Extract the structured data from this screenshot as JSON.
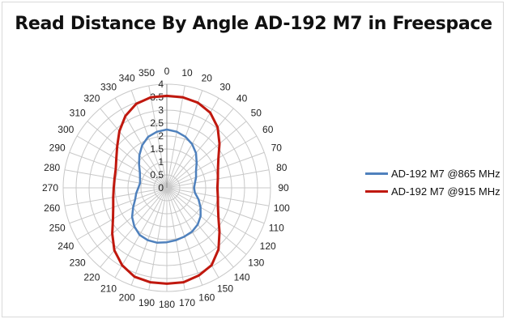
{
  "chart_data": {
    "type": "polar-line",
    "title": "Read Distance By Angle AD-192 M7 in Freespace",
    "angle_labels": [
      "0",
      "10",
      "20",
      "30",
      "40",
      "50",
      "60",
      "70",
      "80",
      "90",
      "100",
      "110",
      "120",
      "130",
      "140",
      "150",
      "160",
      "170",
      "180",
      "190",
      "200",
      "210",
      "220",
      "230",
      "240",
      "250",
      "260",
      "270",
      "280",
      "290",
      "300",
      "310",
      "320",
      "330",
      "340",
      "350"
    ],
    "radial_labels": [
      "0",
      "0.5",
      "1",
      "1.5",
      "2",
      "2.5",
      "3",
      "3.5",
      "4"
    ],
    "rlim": [
      0,
      4
    ],
    "grid": true,
    "legend_position": "right",
    "series": [
      {
        "name": "AD-192 M7 @865 MHz",
        "color": "#4f81bd",
        "values": [
          2.25,
          2.2,
          2.1,
          1.95,
          1.75,
          1.5,
          1.3,
          1.2,
          1.1,
          1.05,
          1.1,
          1.3,
          1.5,
          1.7,
          1.85,
          1.95,
          2.0,
          2.05,
          2.1,
          2.15,
          2.15,
          2.1,
          1.95,
          1.75,
          1.5,
          1.3,
          1.2,
          1.1,
          1.05,
          1.1,
          1.2,
          1.4,
          1.65,
          1.9,
          2.1,
          2.2
        ]
      },
      {
        "name": "AD-192 M7 @915 MHz",
        "color": "#c0180e",
        "values": [
          3.55,
          3.55,
          3.5,
          3.35,
          3.05,
          2.65,
          2.3,
          2.1,
          2.0,
          1.95,
          2.0,
          2.1,
          2.3,
          2.65,
          3.1,
          3.45,
          3.6,
          3.7,
          3.7,
          3.7,
          3.65,
          3.45,
          3.15,
          2.75,
          2.4,
          2.2,
          2.1,
          2.05,
          2.05,
          2.1,
          2.25,
          2.5,
          2.85,
          3.2,
          3.45,
          3.55
        ]
      }
    ]
  }
}
